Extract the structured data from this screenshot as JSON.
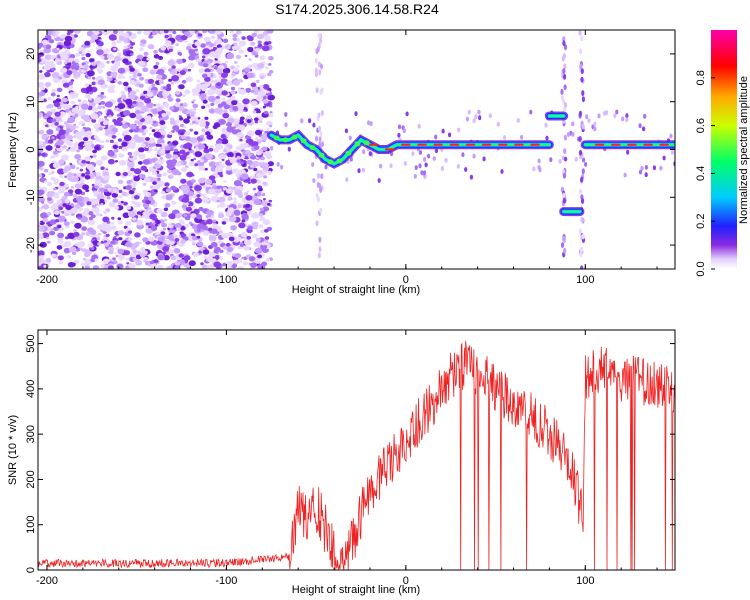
{
  "title": "S174.2025.306.14.58.R24",
  "chart_data": [
    {
      "type": "heatmap",
      "name": "spectrogram",
      "xlabel": "Height of straight line (km)",
      "ylabel": "Frequency (Hz)",
      "xlim": [
        -205,
        150
      ],
      "ylim": [
        -25,
        25
      ],
      "xticks": [
        -200,
        -100,
        0,
        100
      ],
      "yticks": [
        -20,
        -10,
        0,
        10,
        20
      ],
      "colorbar": {
        "label": "Normalized spectral amplitude",
        "range": [
          0,
          1
        ],
        "ticks": [
          "0.0",
          "0.2",
          "0.4",
          "0.6",
          "0.8"
        ]
      },
      "noise_region_km": [
        -205,
        -75
      ],
      "ridge": {
        "x": [
          -75,
          -70,
          -65,
          -60,
          -55,
          -50,
          -45,
          -40,
          -35,
          -30,
          -25,
          -20,
          -15,
          -10,
          -5,
          0,
          10,
          20,
          30,
          40,
          50,
          60,
          70,
          80
        ],
        "y": [
          3,
          2,
          2,
          3,
          1,
          0,
          -2,
          -3,
          -2,
          0,
          2,
          1,
          0,
          0,
          1,
          1,
          1,
          1,
          1,
          1,
          1,
          1,
          1,
          1
        ]
      },
      "segments": [
        {
          "x_range": [
            80,
            88
          ],
          "freq_hz": 7
        },
        {
          "x_range": [
            88,
            97
          ],
          "freq_hz": -13
        },
        {
          "x_range": [
            100,
            150
          ],
          "freq_hz": 1
        }
      ]
    },
    {
      "type": "line",
      "name": "snr",
      "xlabel": "Height of straight line (km)",
      "ylabel": "SNR (10 * v/v)",
      "xlim": [
        -205,
        150
      ],
      "ylim": [
        0,
        530
      ],
      "xticks": [
        -200,
        -100,
        0,
        100
      ],
      "yticks": [
        0,
        100,
        200,
        300,
        400,
        500
      ],
      "color": "#ee2222",
      "trend": {
        "x": [
          -205,
          -150,
          -100,
          -65,
          -60,
          -55,
          -50,
          -45,
          -40,
          -35,
          -30,
          -20,
          -10,
          0,
          10,
          20,
          30,
          35,
          40,
          50,
          60,
          70,
          80,
          90,
          98,
          99,
          100,
          110,
          120,
          130,
          140,
          150
        ],
        "y": [
          15,
          15,
          15,
          30,
          150,
          120,
          140,
          90,
          30,
          10,
          60,
          180,
          230,
          290,
          340,
          400,
          450,
          455,
          440,
          400,
          370,
          340,
          300,
          250,
          130,
          140,
          430,
          440,
          420,
          420,
          410,
          400
        ]
      }
    }
  ]
}
